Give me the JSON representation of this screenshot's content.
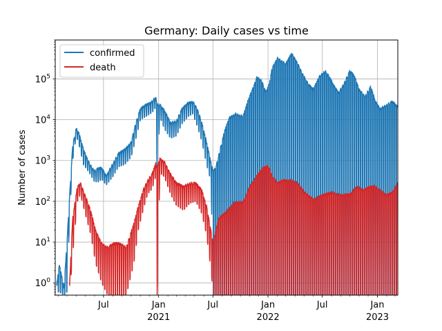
{
  "chart_data": {
    "type": "line",
    "title": "Germany: Daily  cases vs time",
    "xlabel": "",
    "ylabel": "Number of cases",
    "yscale": "log",
    "ylim": [
      0.5,
      900000
    ],
    "xlim": [
      "2020-01-22",
      "2023-03-10"
    ],
    "grid": true,
    "legend": "top-left",
    "x_ticks": [
      {
        "date": "2020-07-01",
        "label": "Jul",
        "sub": ""
      },
      {
        "date": "2021-01-01",
        "label": "Jan",
        "sub": "2021"
      },
      {
        "date": "2021-07-01",
        "label": "Jul",
        "sub": ""
      },
      {
        "date": "2022-01-01",
        "label": "Jan",
        "sub": "2022"
      },
      {
        "date": "2022-07-01",
        "label": "Jul",
        "sub": ""
      },
      {
        "date": "2023-01-01",
        "label": "Jan",
        "sub": "2023"
      }
    ],
    "y_ticks": [
      {
        "value": 1,
        "base": "10",
        "exp": "0"
      },
      {
        "value": 10,
        "base": "10",
        "exp": "1"
      },
      {
        "value": 100,
        "base": "10",
        "exp": "2"
      },
      {
        "value": 1000,
        "base": "10",
        "exp": "3"
      },
      {
        "value": 10000,
        "base": "10",
        "exp": "4"
      },
      {
        "value": 100000,
        "base": "10",
        "exp": "5"
      }
    ],
    "series": [
      {
        "name": "confirmed",
        "color": "#1f77b4",
        "envelope": [
          [
            "2020-01-27",
            1,
            0.6
          ],
          [
            "2020-02-05",
            3,
            0.6
          ],
          [
            "2020-02-20",
            0.8,
            0.5
          ],
          [
            "2020-03-01",
            10,
            0.6
          ],
          [
            "2020-03-10",
            150,
            40
          ],
          [
            "2020-03-20",
            2500,
            1000
          ],
          [
            "2020-04-01",
            6500,
            4000
          ],
          [
            "2020-04-10",
            5000,
            2500
          ],
          [
            "2020-04-25",
            2000,
            800
          ],
          [
            "2020-05-15",
            900,
            500
          ],
          [
            "2020-06-01",
            600,
            300
          ],
          [
            "2020-06-15",
            700,
            300
          ],
          [
            "2020-06-25",
            700,
            350
          ],
          [
            "2020-07-10",
            450,
            250
          ],
          [
            "2020-08-01",
            900,
            400
          ],
          [
            "2020-08-20",
            1600,
            700
          ],
          [
            "2020-09-10",
            2000,
            800
          ],
          [
            "2020-10-01",
            3000,
            1200
          ],
          [
            "2020-10-15",
            8000,
            3000
          ],
          [
            "2020-11-01",
            20000,
            10000
          ],
          [
            "2020-11-20",
            25000,
            12000
          ],
          [
            "2020-12-10",
            30000,
            15000
          ],
          [
            "2020-12-22",
            40000,
            20000
          ],
          [
            "2020-12-27",
            25000,
            600
          ],
          [
            "2021-01-05",
            25000,
            12000
          ],
          [
            "2021-01-20",
            18000,
            6000
          ],
          [
            "2021-02-10",
            9000,
            3500
          ],
          [
            "2021-03-01",
            10000,
            4000
          ],
          [
            "2021-03-20",
            20000,
            8000
          ],
          [
            "2021-04-10",
            28000,
            12000
          ],
          [
            "2021-04-25",
            30000,
            14000
          ],
          [
            "2021-05-10",
            20000,
            7000
          ],
          [
            "2021-05-25",
            9000,
            3000
          ],
          [
            "2021-06-10",
            3000,
            800
          ],
          [
            "2021-06-25",
            900,
            300
          ],
          [
            "2021-07-02",
            600,
            0.5
          ],
          [
            "2021-07-10",
            700,
            0.5
          ],
          [
            "2021-07-25",
            2000,
            0.5
          ],
          [
            "2021-08-10",
            6000,
            0.5
          ],
          [
            "2021-08-25",
            12000,
            0.5
          ],
          [
            "2021-09-15",
            15000,
            0.5
          ],
          [
            "2021-10-10",
            13000,
            0.5
          ],
          [
            "2021-10-25",
            30000,
            0.5
          ],
          [
            "2021-11-10",
            60000,
            0.5
          ],
          [
            "2021-11-25",
            120000,
            0.5
          ],
          [
            "2021-12-10",
            100000,
            0.5
          ],
          [
            "2021-12-25",
            50000,
            0.5
          ],
          [
            "2022-01-05",
            80000,
            0.5
          ],
          [
            "2022-01-15",
            200000,
            0.5
          ],
          [
            "2022-02-01",
            350000,
            0.5
          ],
          [
            "2022-02-15",
            300000,
            0.5
          ],
          [
            "2022-03-01",
            250000,
            0.5
          ],
          [
            "2022-03-20",
            450000,
            0.5
          ],
          [
            "2022-04-05",
            300000,
            0.5
          ],
          [
            "2022-04-25",
            150000,
            0.5
          ],
          [
            "2022-05-15",
            80000,
            0.5
          ],
          [
            "2022-06-01",
            60000,
            0.5
          ],
          [
            "2022-06-20",
            120000,
            0.5
          ],
          [
            "2022-07-10",
            170000,
            0.5
          ],
          [
            "2022-07-25",
            120000,
            0.5
          ],
          [
            "2022-08-10",
            70000,
            0.5
          ],
          [
            "2022-08-25",
            50000,
            0.5
          ],
          [
            "2022-09-10",
            80000,
            0.5
          ],
          [
            "2022-10-01",
            170000,
            0.5
          ],
          [
            "2022-10-15",
            130000,
            0.5
          ],
          [
            "2022-11-01",
            60000,
            0.5
          ],
          [
            "2022-11-20",
            40000,
            0.5
          ],
          [
            "2022-12-10",
            70000,
            0.5
          ],
          [
            "2022-12-25",
            30000,
            0.5
          ],
          [
            "2023-01-10",
            20000,
            0.5
          ],
          [
            "2023-02-01",
            25000,
            0.5
          ],
          [
            "2023-02-20",
            30000,
            0.5
          ],
          [
            "2023-03-10",
            22000,
            0.5
          ]
        ]
      },
      {
        "name": "death",
        "color": "#d62728",
        "envelope": [
          [
            "2020-03-10",
            1,
            0.5
          ],
          [
            "2020-03-20",
            40,
            5
          ],
          [
            "2020-04-05",
            250,
            100
          ],
          [
            "2020-04-15",
            300,
            150
          ],
          [
            "2020-05-01",
            150,
            50
          ],
          [
            "2020-05-20",
            60,
            15
          ],
          [
            "2020-06-05",
            20,
            3
          ],
          [
            "2020-06-25",
            10,
            1
          ],
          [
            "2020-07-15",
            8,
            0.5
          ],
          [
            "2020-08-05",
            10,
            0.5
          ],
          [
            "2020-08-25",
            10,
            0.5
          ],
          [
            "2020-09-15",
            8,
            0.5
          ],
          [
            "2020-10-10",
            30,
            3
          ],
          [
            "2020-10-25",
            80,
            20
          ],
          [
            "2020-11-10",
            200,
            60
          ],
          [
            "2020-11-25",
            350,
            150
          ],
          [
            "2020-12-10",
            500,
            200
          ],
          [
            "2020-12-22",
            900,
            400
          ],
          [
            "2020-12-27",
            700,
            0.5
          ],
          [
            "2021-01-05",
            1200,
            500
          ],
          [
            "2021-01-20",
            1000,
            400
          ],
          [
            "2021-02-10",
            500,
            150
          ],
          [
            "2021-03-01",
            300,
            80
          ],
          [
            "2021-03-25",
            250,
            60
          ],
          [
            "2021-04-15",
            300,
            90
          ],
          [
            "2021-05-05",
            300,
            100
          ],
          [
            "2021-05-25",
            200,
            50
          ],
          [
            "2021-06-10",
            80,
            15
          ],
          [
            "2021-06-25",
            20,
            2
          ],
          [
            "2021-07-02",
            10,
            0.5
          ],
          [
            "2021-07-20",
            40,
            0.5
          ],
          [
            "2021-08-15",
            60,
            0.5
          ],
          [
            "2021-09-10",
            100,
            0.5
          ],
          [
            "2021-10-10",
            100,
            0.5
          ],
          [
            "2021-11-01",
            250,
            0.5
          ],
          [
            "2021-11-25",
            450,
            0.5
          ],
          [
            "2021-12-15",
            700,
            0.5
          ],
          [
            "2022-01-01",
            800,
            0.5
          ],
          [
            "2022-01-15",
            450,
            0.5
          ],
          [
            "2022-02-01",
            300,
            0.5
          ],
          [
            "2022-02-20",
            350,
            0.5
          ],
          [
            "2022-03-20",
            350,
            0.5
          ],
          [
            "2022-04-10",
            300,
            0.5
          ],
          [
            "2022-05-01",
            180,
            0.5
          ],
          [
            "2022-06-01",
            120,
            0.5
          ],
          [
            "2022-07-01",
            150,
            0.5
          ],
          [
            "2022-08-01",
            180,
            0.5
          ],
          [
            "2022-09-01",
            150,
            0.5
          ],
          [
            "2022-10-01",
            160,
            0.5
          ],
          [
            "2022-10-25",
            250,
            0.5
          ],
          [
            "2022-11-15",
            200,
            0.5
          ],
          [
            "2022-12-10",
            250,
            0.5
          ],
          [
            "2022-12-25",
            250,
            0.5
          ],
          [
            "2023-01-10",
            200,
            0.5
          ],
          [
            "2023-02-01",
            150,
            0.5
          ],
          [
            "2023-02-20",
            180,
            0.5
          ],
          [
            "2023-03-10",
            300,
            0.5
          ]
        ]
      }
    ]
  }
}
